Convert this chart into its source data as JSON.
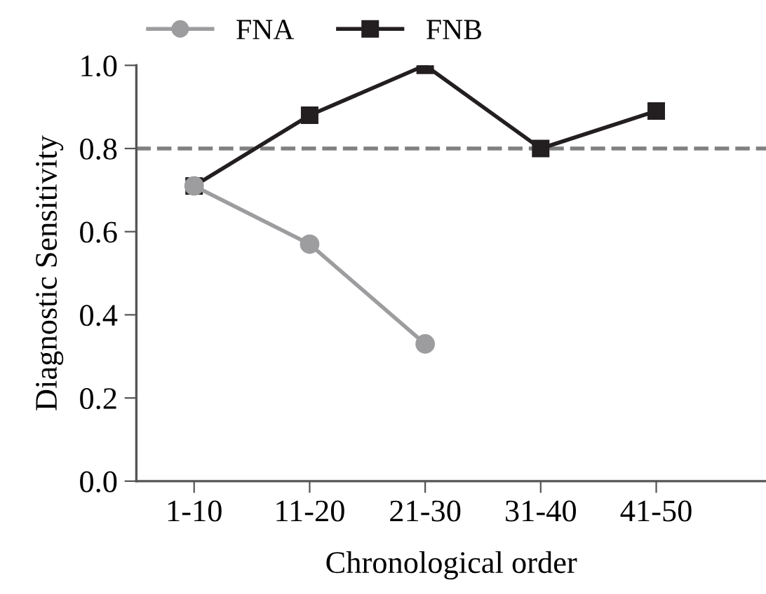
{
  "chart_data": {
    "type": "line",
    "xlabel": "Chronological order",
    "ylabel": "Diagnostic Sensitivity",
    "categories": [
      "1-10",
      "11-20",
      "21-30",
      "31-40",
      "41-50"
    ],
    "series": [
      {
        "name": "FNA",
        "color": "#9d9d9f",
        "marker": "circle",
        "values": [
          0.71,
          0.57,
          0.33,
          null,
          null
        ]
      },
      {
        "name": "FNB",
        "color": "#231f20",
        "marker": "square",
        "values": [
          0.71,
          0.88,
          1.0,
          0.8,
          0.89
        ]
      }
    ],
    "ylim": [
      0,
      1.0
    ],
    "yticks": [
      {
        "value": 0,
        "label": "0.0"
      },
      0.2,
      0.4,
      0.6,
      0.8,
      {
        "value": 1.0,
        "label": "1.0"
      }
    ],
    "ref_lines": [
      {
        "axis": "y",
        "value": 0.8,
        "color": "#808080",
        "line_style": "dashed"
      }
    ],
    "legend": "top",
    "grid": false,
    "line_style": "solid"
  }
}
